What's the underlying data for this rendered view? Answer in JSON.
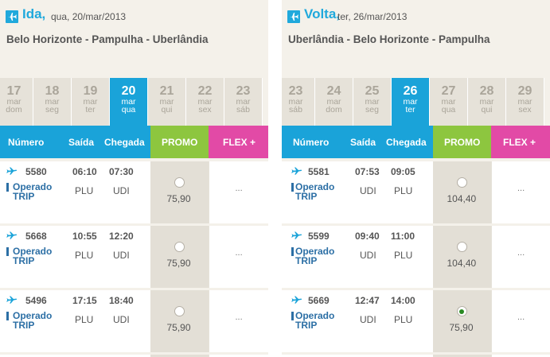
{
  "colors": {
    "accent": "#1aa3d9",
    "promo": "#8dc63f",
    "flex": "#e24aa6",
    "operator": "#2c6fa5"
  },
  "ida": {
    "direction": "Ida,",
    "date": "qua, 20/mar/2013",
    "route": "Belo Horizonte - Pampulha - Uberlândia",
    "days": [
      {
        "num": "17",
        "mon": "mar",
        "wd": "dom",
        "selected": false
      },
      {
        "num": "18",
        "mon": "mar",
        "wd": "seg",
        "selected": false
      },
      {
        "num": "19",
        "mon": "mar",
        "wd": "ter",
        "selected": false
      },
      {
        "num": "20",
        "mon": "mar",
        "wd": "qua",
        "selected": true
      },
      {
        "num": "21",
        "mon": "mar",
        "wd": "qui",
        "selected": false
      },
      {
        "num": "22",
        "mon": "mar",
        "wd": "sex",
        "selected": false
      },
      {
        "num": "23",
        "mon": "mar",
        "wd": "sáb",
        "selected": false
      }
    ],
    "headers": {
      "numero": "Número",
      "saida": "Saída",
      "chegada": "Chegada",
      "promo": "PROMO",
      "flex": "FLEX +"
    },
    "flights": [
      {
        "number": "5580",
        "operator_line1": "Operado",
        "operator_line2": "TRIP",
        "dep_time": "06:10",
        "arr_time": "07:30",
        "dep_airport": "PLU",
        "arr_airport": "UDI",
        "promo_price": "75,90",
        "selected": false,
        "flex": "..."
      },
      {
        "number": "5668",
        "operator_line1": "Operado",
        "operator_line2": "TRIP",
        "dep_time": "10:55",
        "arr_time": "12:20",
        "dep_airport": "PLU",
        "arr_airport": "UDI",
        "promo_price": "75,90",
        "selected": false,
        "flex": "..."
      },
      {
        "number": "5496",
        "operator_line1": "Operado",
        "operator_line2": "TRIP",
        "dep_time": "17:15",
        "arr_time": "18:40",
        "dep_airport": "PLU",
        "arr_airport": "UDI",
        "promo_price": "75,90",
        "selected": false,
        "flex": "..."
      }
    ]
  },
  "volta": {
    "direction": "Volta,",
    "date": "ter, 26/mar/2013",
    "route": "Uberlândia - Belo Horizonte - Pampulha",
    "days": [
      {
        "num": "23",
        "mon": "mar",
        "wd": "sáb",
        "selected": false
      },
      {
        "num": "24",
        "mon": "mar",
        "wd": "dom",
        "selected": false
      },
      {
        "num": "25",
        "mon": "mar",
        "wd": "seg",
        "selected": false
      },
      {
        "num": "26",
        "mon": "mar",
        "wd": "ter",
        "selected": true
      },
      {
        "num": "27",
        "mon": "mar",
        "wd": "qua",
        "selected": false
      },
      {
        "num": "28",
        "mon": "mar",
        "wd": "qui",
        "selected": false
      },
      {
        "num": "29",
        "mon": "mar",
        "wd": "sex",
        "selected": false
      }
    ],
    "headers": {
      "numero": "Número",
      "saida": "Saída",
      "chegada": "Chegada",
      "promo": "PROMO",
      "flex": "FLEX +"
    },
    "flights": [
      {
        "number": "5581",
        "operator_line1": "Operado",
        "operator_line2": "TRIP",
        "dep_time": "07:53",
        "arr_time": "09:05",
        "dep_airport": "UDI",
        "arr_airport": "PLU",
        "promo_price": "104,40",
        "selected": false,
        "flex": "..."
      },
      {
        "number": "5599",
        "operator_line1": "Operado",
        "operator_line2": "TRIP",
        "dep_time": "09:40",
        "arr_time": "11:00",
        "dep_airport": "UDI",
        "arr_airport": "PLU",
        "promo_price": "104,40",
        "selected": false,
        "flex": "..."
      },
      {
        "number": "5669",
        "operator_line1": "Operado",
        "operator_line2": "TRIP",
        "dep_time": "12:47",
        "arr_time": "14:00",
        "dep_airport": "UDI",
        "arr_airport": "PLU",
        "promo_price": "75,90",
        "selected": true,
        "flex": "..."
      }
    ]
  }
}
